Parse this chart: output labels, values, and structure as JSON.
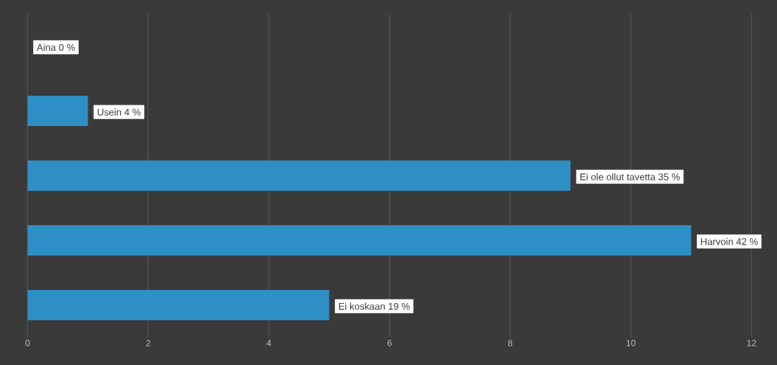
{
  "chart_data": {
    "type": "bar",
    "orientation": "horizontal",
    "categories": [
      null,
      null,
      null,
      null,
      null
    ],
    "values": [
      0,
      1,
      9,
      11,
      5
    ],
    "value_labels": [
      "Aina 0 %",
      "Usein 4 %",
      "Ei ole ollut tavetta  35 %",
      "Harvoin 42 %",
      "Ei koskaan 19 %"
    ],
    "color": "#2e8fc4",
    "xlim": [
      0,
      12
    ],
    "xticks": [
      0,
      2,
      4,
      6,
      8,
      10,
      12
    ],
    "grid": "x",
    "tick_labels": "x"
  }
}
